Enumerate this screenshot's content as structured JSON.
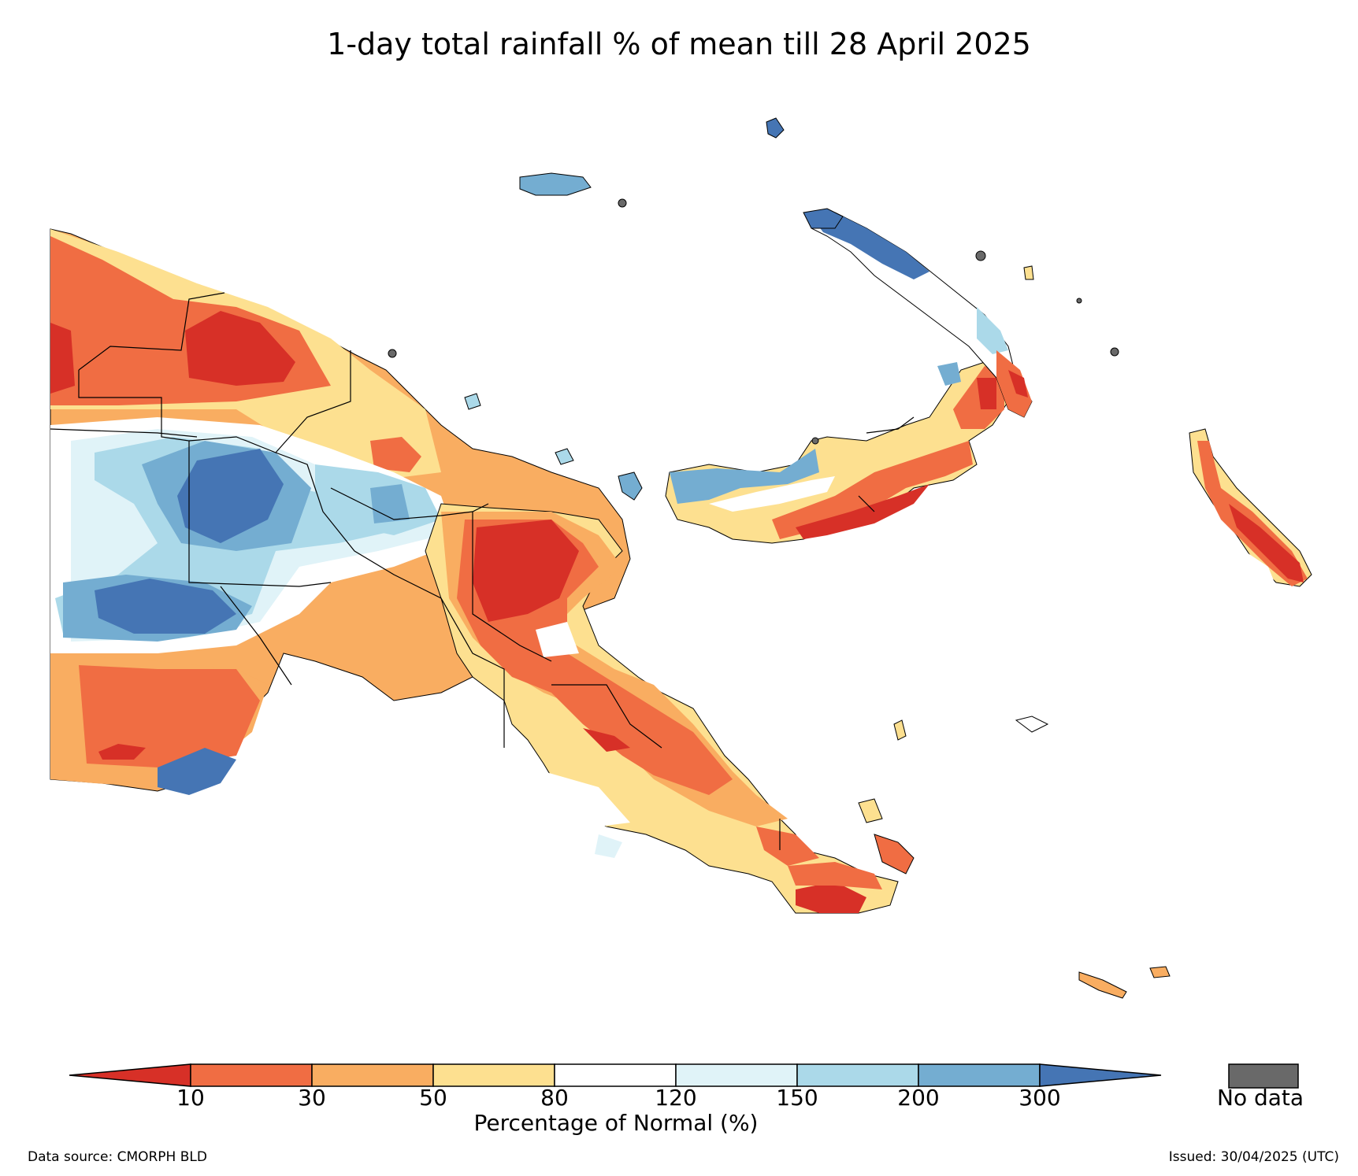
{
  "title": "1-day total rainfall % of mean till 28 April 2025",
  "legend": {
    "label": "Percentage of Normal (%)",
    "ticks": [
      "10",
      "30",
      "50",
      "80",
      "120",
      "150",
      "200",
      "300"
    ],
    "colors": [
      "#d73027",
      "#f06d43",
      "#f9ad61",
      "#fde090",
      "#ffffff",
      "#e0f3f8",
      "#abd9e9",
      "#74add1",
      "#4575b4"
    ],
    "no_data_label": "No data",
    "no_data_color": "#696969"
  },
  "footer": {
    "source": "Data source: CMORPH BLD",
    "issued": "Issued: 30/04/2025 (UTC)"
  }
}
